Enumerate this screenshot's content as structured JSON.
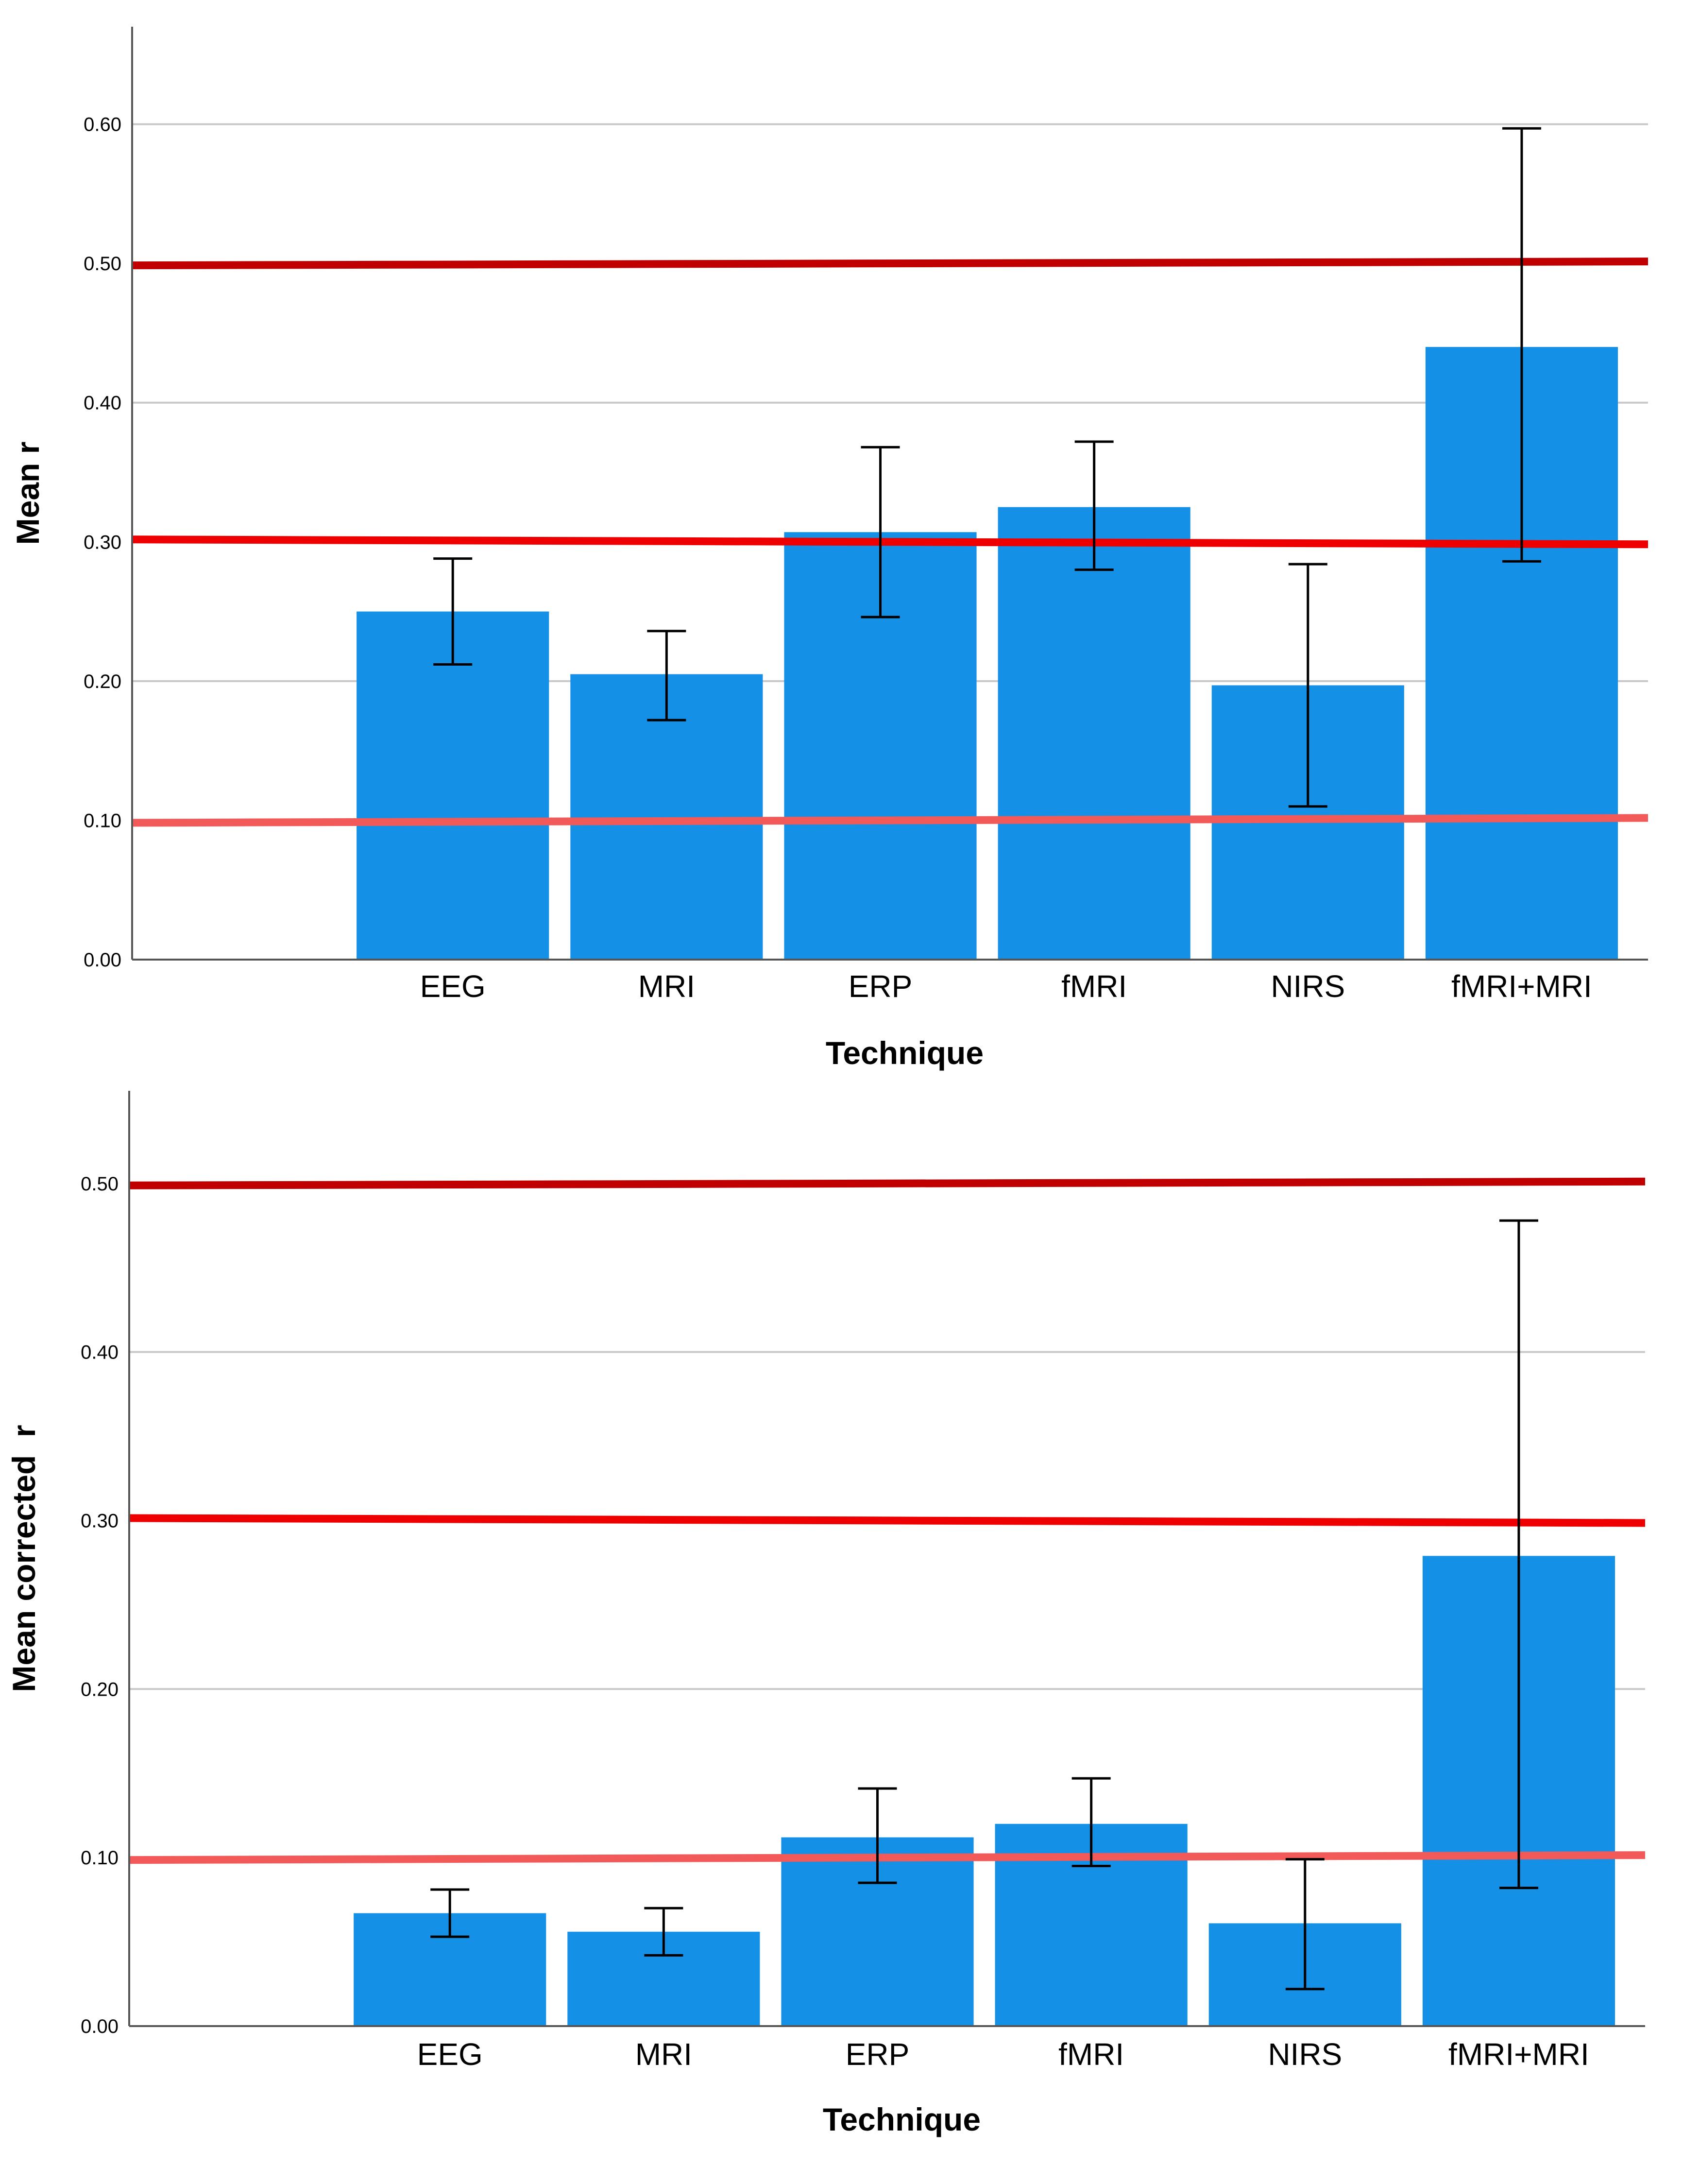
{
  "chart_data": [
    {
      "type": "bar",
      "xlabel": "Technique",
      "ylabel": "Mean r",
      "categories": [
        "EEG",
        "MRI",
        "ERP",
        "fMRI",
        "NIRS",
        "fMRI+MRI"
      ],
      "values": [
        0.25,
        0.205,
        0.307,
        0.325,
        0.197,
        0.44
      ],
      "error_low": [
        0.212,
        0.172,
        0.246,
        0.28,
        0.11,
        0.286
      ],
      "error_high": [
        0.288,
        0.236,
        0.368,
        0.372,
        0.284,
        0.597
      ],
      "ylim": [
        0,
        0.67
      ],
      "yticks": [
        0,
        0.1,
        0.2,
        0.3,
        0.4,
        0.5,
        0.6
      ],
      "ytick_labels": [
        "0.00",
        "0.10",
        "0.20",
        "0.30",
        "0.40",
        "0.50",
        "0.60"
      ],
      "gridlines": true,
      "reference_lines": [
        {
          "value": 0.1,
          "color": "#f25a5a"
        },
        {
          "value": 0.3,
          "color": "#ee0000"
        },
        {
          "value": 0.5,
          "color": "#c00000"
        }
      ],
      "bar_color": "#1490e6"
    },
    {
      "type": "bar",
      "xlabel": "Technique",
      "ylabel": "Mean corrected  r",
      "categories": [
        "EEG",
        "MRI",
        "ERP",
        "fMRI",
        "NIRS",
        "fMRI+MRI"
      ],
      "values": [
        0.067,
        0.056,
        0.112,
        0.12,
        0.061,
        0.279
      ],
      "error_low": [
        0.053,
        0.042,
        0.085,
        0.095,
        0.022,
        0.082
      ],
      "error_high": [
        0.081,
        0.07,
        0.141,
        0.147,
        0.099,
        0.478
      ],
      "ylim": [
        0,
        0.555
      ],
      "yticks": [
        0,
        0.1,
        0.2,
        0.3,
        0.4,
        0.5
      ],
      "ytick_labels": [
        "0.00",
        "0.10",
        "0.20",
        "0.30",
        "0.40",
        "0.50"
      ],
      "gridlines": true,
      "reference_lines": [
        {
          "value": 0.1,
          "color": "#f25a5a"
        },
        {
          "value": 0.3,
          "color": "#ee0000"
        },
        {
          "value": 0.5,
          "color": "#c00000"
        }
      ],
      "bar_color": "#1490e6"
    }
  ]
}
